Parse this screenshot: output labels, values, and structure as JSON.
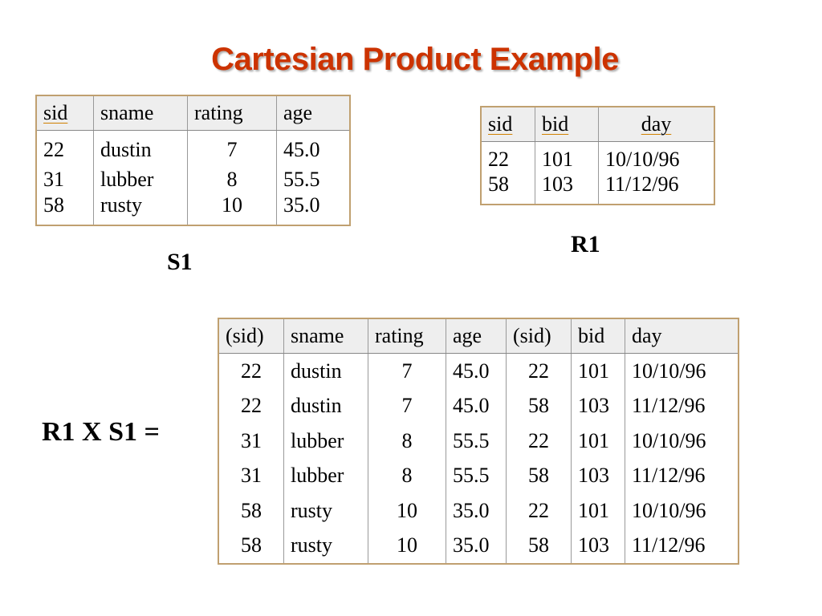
{
  "title": "Cartesian Product Example",
  "s1": {
    "label": "S1",
    "columns": [
      "sid",
      "sname",
      "rating",
      "age"
    ],
    "rows": [
      [
        "22",
        "dustin",
        "7",
        "45.0"
      ],
      [
        "31",
        "lubber",
        "8",
        "55.5"
      ],
      [
        "58",
        "rusty",
        "10",
        "35.0"
      ]
    ]
  },
  "r1": {
    "label": "R1",
    "columns": [
      "sid",
      "bid",
      "day"
    ],
    "rows": [
      [
        "22",
        "101",
        "10/10/96"
      ],
      [
        "58",
        "103",
        "11/12/96"
      ]
    ]
  },
  "product": {
    "label": "R1 X S1 =",
    "columns": [
      "(sid)",
      "sname",
      "rating",
      "age",
      "(sid)",
      "bid",
      "day"
    ],
    "rows": [
      [
        "22",
        "dustin",
        "7",
        "45.0",
        "22",
        "101",
        "10/10/96"
      ],
      [
        "22",
        "dustin",
        "7",
        "45.0",
        "58",
        "103",
        "11/12/96"
      ],
      [
        "31",
        "lubber",
        "8",
        "55.5",
        "22",
        "101",
        "10/10/96"
      ],
      [
        "31",
        "lubber",
        "8",
        "55.5",
        "58",
        "103",
        "11/12/96"
      ],
      [
        "58",
        "rusty",
        "10",
        "35.0",
        "22",
        "101",
        "10/10/96"
      ],
      [
        "58",
        "rusty",
        "10",
        "35.0",
        "58",
        "103",
        "11/12/96"
      ]
    ]
  }
}
